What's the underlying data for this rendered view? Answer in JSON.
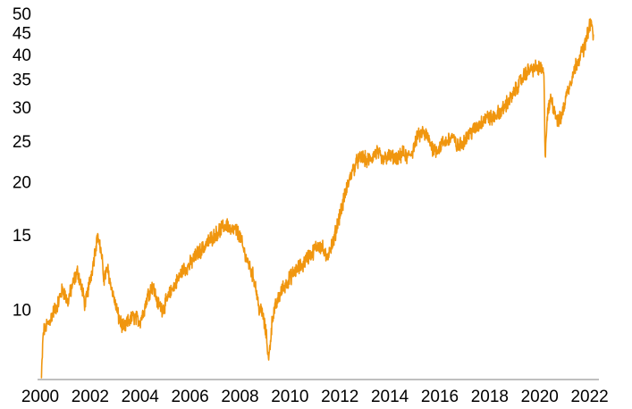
{
  "chart_data": {
    "type": "line",
    "title": "",
    "xlabel": "",
    "ylabel": "",
    "y_scale": "log",
    "grid": false,
    "legend": "none",
    "xlim": [
      2000.0,
      2022.3
    ],
    "ylim": [
      7.0,
      50
    ],
    "x_ticks": [
      2000,
      2002,
      2004,
      2006,
      2008,
      2010,
      2012,
      2014,
      2016,
      2018,
      2020,
      2022
    ],
    "x_tick_labels": [
      "2000",
      "2002",
      "2004",
      "2006",
      "2008",
      "2010",
      "2012",
      "2014",
      "2016",
      "2018",
      "2020",
      "2022"
    ],
    "y_ticks": [
      10,
      15,
      20,
      25,
      30,
      35,
      40,
      45,
      50
    ],
    "y_tick_labels": [
      "10",
      "15",
      "20",
      "25",
      "30",
      "35",
      "40",
      "45",
      "50"
    ],
    "colors": {
      "line": "#F0960F",
      "axis": "#999999",
      "text": "#000000"
    },
    "series": [
      {
        "name": "",
        "x": [
          2000.05,
          2000.12,
          2000.2,
          2000.35,
          2000.5,
          2000.7,
          2000.9,
          2001.1,
          2001.3,
          2001.5,
          2001.7,
          2001.8,
          2001.95,
          2002.1,
          2002.2,
          2002.3,
          2002.45,
          2002.55,
          2002.7,
          2002.85,
          2003.0,
          2003.15,
          2003.35,
          2003.55,
          2003.75,
          2004.0,
          2004.15,
          2004.3,
          2004.5,
          2004.7,
          2004.9,
          2005.1,
          2005.3,
          2005.5,
          2005.7,
          2005.9,
          2006.1,
          2006.3,
          2006.5,
          2006.7,
          2006.9,
          2007.1,
          2007.3,
          2007.5,
          2007.65,
          2007.8,
          2008.0,
          2008.2,
          2008.4,
          2008.6,
          2008.75,
          2008.9,
          2009.05,
          2009.15,
          2009.3,
          2009.5,
          2009.7,
          2009.9,
          2010.1,
          2010.3,
          2010.5,
          2010.7,
          2010.9,
          2011.1,
          2011.3,
          2011.45,
          2011.6,
          2011.75,
          2011.9,
          2012.1,
          2012.3,
          2012.5,
          2012.7,
          2012.9,
          2013.1,
          2013.3,
          2013.5,
          2013.7,
          2013.9,
          2014.1,
          2014.3,
          2014.5,
          2014.7,
          2014.9,
          2015.1,
          2015.3,
          2015.5,
          2015.7,
          2015.9,
          2016.1,
          2016.3,
          2016.5,
          2016.7,
          2016.9,
          2017.1,
          2017.3,
          2017.5,
          2017.7,
          2017.9,
          2018.1,
          2018.3,
          2018.5,
          2018.7,
          2018.9,
          2019.1,
          2019.3,
          2019.5,
          2019.7,
          2019.9,
          2020.1,
          2020.17,
          2020.22,
          2020.3,
          2020.45,
          2020.6,
          2020.75,
          2020.9,
          2021.1,
          2021.3,
          2021.5,
          2021.7,
          2021.85,
          2021.95,
          2022.05,
          2022.15
        ],
        "y": [
          6.9,
          8.8,
          9.1,
          9.3,
          9.8,
          10.3,
          11.2,
          10.4,
          11.5,
          12.3,
          11.0,
          10.2,
          11.4,
          12.6,
          13.8,
          15.1,
          13.5,
          11.8,
          12.5,
          11.2,
          10.4,
          9.5,
          9.0,
          9.4,
          9.6,
          9.4,
          9.9,
          10.8,
          11.4,
          10.4,
          10.0,
          10.6,
          11.2,
          11.7,
          12.4,
          12.6,
          13.0,
          13.6,
          13.9,
          14.4,
          14.8,
          15.2,
          15.6,
          15.9,
          15.2,
          15.5,
          14.9,
          13.4,
          12.6,
          11.6,
          10.1,
          9.8,
          8.7,
          7.6,
          9.6,
          10.5,
          11.2,
          11.6,
          12.1,
          12.5,
          12.7,
          13.3,
          13.6,
          14.2,
          14.0,
          13.2,
          13.9,
          14.5,
          16.0,
          17.6,
          19.6,
          21.2,
          22.4,
          22.9,
          22.4,
          22.9,
          23.6,
          22.4,
          23.0,
          22.9,
          22.4,
          23.4,
          22.8,
          23.6,
          25.4,
          26.2,
          25.6,
          24.1,
          23.8,
          24.6,
          25.1,
          25.6,
          24.2,
          24.6,
          26.0,
          26.3,
          27.0,
          27.8,
          28.5,
          28.2,
          29.0,
          29.5,
          30.8,
          31.8,
          33.5,
          35.2,
          36.5,
          37.0,
          37.2,
          36.8,
          35.5,
          23.1,
          28.5,
          31.5,
          29.5,
          27.5,
          29.0,
          32.5,
          35.5,
          38.5,
          40.5,
          42.8,
          45.5,
          48.0,
          44.5
        ]
      }
    ]
  }
}
